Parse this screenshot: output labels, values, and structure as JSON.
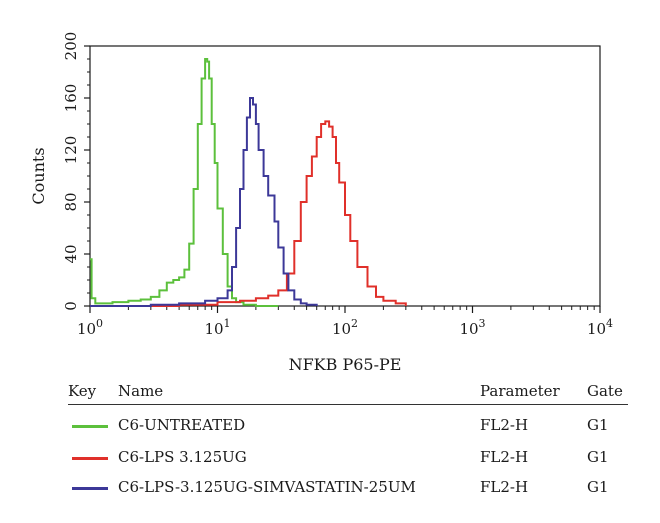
{
  "chart_data": {
    "type": "line",
    "title": "",
    "xlabel": "NFKB P65-PE",
    "ylabel": "Counts",
    "xscale": "log",
    "xlim": [
      1,
      10000
    ],
    "ylim": [
      0,
      200
    ],
    "x_ticks": [
      1,
      10,
      100,
      1000,
      10000
    ],
    "x_tick_labels": [
      {
        "base": "10",
        "exp": "0"
      },
      {
        "base": "10",
        "exp": "1"
      },
      {
        "base": "10",
        "exp": "2"
      },
      {
        "base": "10",
        "exp": "3"
      },
      {
        "base": "10",
        "exp": "4"
      }
    ],
    "y_ticks": [
      0,
      40,
      80,
      120,
      160,
      200
    ],
    "y_tick_labels": [
      "0",
      "40",
      "80",
      "120",
      "160",
      "200"
    ],
    "grid": false,
    "legend_position": "bottom",
    "series": [
      {
        "name": "C6-UNTREATED",
        "color": "#5cc03c",
        "x": [
          1.0,
          1.03,
          1.1,
          1.5,
          2.0,
          2.5,
          3.0,
          3.5,
          4.0,
          4.5,
          5.0,
          5.5,
          6.0,
          6.5,
          7.0,
          7.5,
          8.0,
          8.3,
          8.6,
          9.0,
          9.5,
          10.0,
          11.0,
          12.0,
          13.0,
          14.0,
          16.0,
          20.0,
          30.0
        ],
        "y": [
          36,
          6,
          2,
          3,
          4,
          5,
          7,
          12,
          18,
          20,
          22,
          28,
          48,
          90,
          140,
          175,
          190,
          188,
          175,
          140,
          110,
          75,
          40,
          15,
          6,
          3,
          1,
          0,
          0
        ]
      },
      {
        "name": "C6-LPS 3.125UG",
        "color": "#e0302a",
        "x": [
          1.0,
          5.0,
          10.0,
          15.0,
          20.0,
          25.0,
          30.0,
          35.0,
          40.0,
          45.0,
          50.0,
          55.0,
          60.0,
          65.0,
          70.0,
          75.0,
          80.0,
          85.0,
          90.0,
          100.0,
          110.0,
          125.0,
          150.0,
          175.0,
          200.0,
          250.0,
          300.0
        ],
        "y": [
          0,
          1,
          3,
          4,
          6,
          8,
          12,
          25,
          50,
          80,
          100,
          115,
          130,
          140,
          142,
          138,
          130,
          110,
          95,
          70,
          50,
          30,
          15,
          7,
          4,
          2,
          0
        ]
      },
      {
        "name": "C6-LPS-3.125UG-SIMVASTATIN-25UM",
        "color": "#3c3898",
        "x": [
          1.0,
          3.0,
          5.0,
          8.0,
          10.0,
          12.0,
          13.0,
          14.0,
          15.0,
          16.0,
          17.0,
          18.0,
          19.0,
          20.0,
          21.0,
          23.0,
          25.0,
          28.0,
          30.0,
          33.0,
          36.0,
          40.0,
          45.0,
          50.0,
          60.0
        ],
        "y": [
          0,
          1,
          2,
          4,
          6,
          12,
          30,
          60,
          90,
          120,
          145,
          160,
          155,
          140,
          120,
          100,
          85,
          65,
          45,
          25,
          12,
          5,
          2,
          1,
          0
        ]
      }
    ]
  },
  "legend": {
    "headers": {
      "key": "Key",
      "name": "Name",
      "parameter": "Parameter",
      "gate": "Gate"
    },
    "rows": [
      {
        "name": "C6-UNTREATED",
        "parameter": "FL2-H",
        "gate": "G1",
        "color": "#5cc03c"
      },
      {
        "name": "C6-LPS 3.125UG",
        "parameter": "FL2-H",
        "gate": "G1",
        "color": "#e0302a"
      },
      {
        "name": "C6-LPS-3.125UG-SIMVASTATIN-25UM",
        "parameter": "FL2-H",
        "gate": "G1",
        "color": "#3c3898"
      }
    ]
  }
}
